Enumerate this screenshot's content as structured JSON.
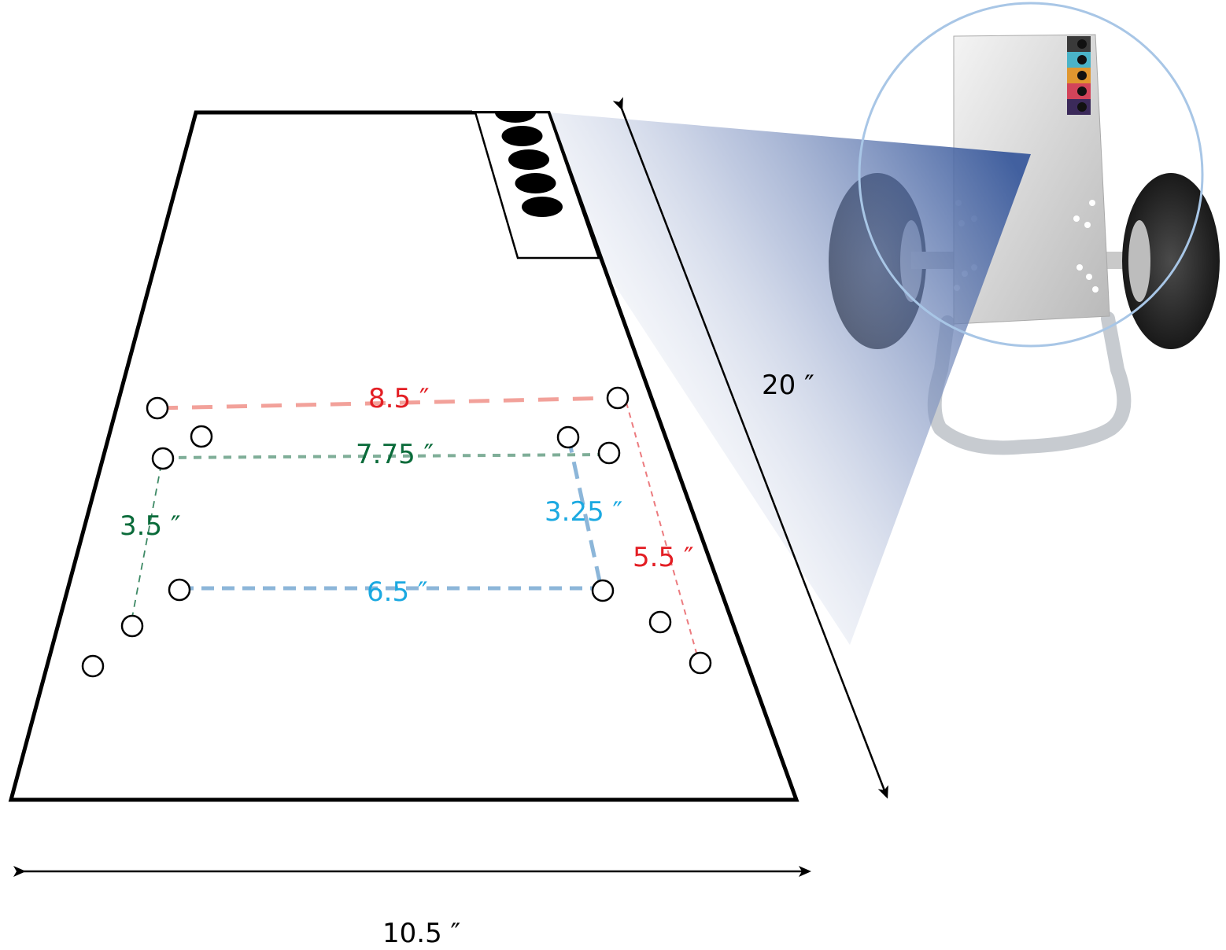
{
  "dimensions": {
    "overall_width": "10.5 ″",
    "overall_height": "20 ″"
  },
  "hole_patterns": [
    {
      "name": "red",
      "color": "#e31e24",
      "line_color": "#f2a19a",
      "width": "8.5 ″",
      "height": "5.5 ″"
    },
    {
      "name": "green",
      "color": "#0a6b3a",
      "line_color": "#7fae98",
      "width": "7.75 ″",
      "height": "3.5 ″"
    },
    {
      "name": "blue",
      "color": "#1ba9e1",
      "line_color": "#8cb6d9",
      "width": "6.5 ″",
      "height": "3.25 ″"
    }
  ],
  "control_panel": {
    "port_count": 5
  },
  "device_photo": {
    "description_icon": "wheeled-cart-unit-icon",
    "panel_port_colors": [
      "#3a3a3a",
      "#4ab3c8",
      "#e0962f",
      "#d2445a",
      "#3b2a5a"
    ]
  }
}
